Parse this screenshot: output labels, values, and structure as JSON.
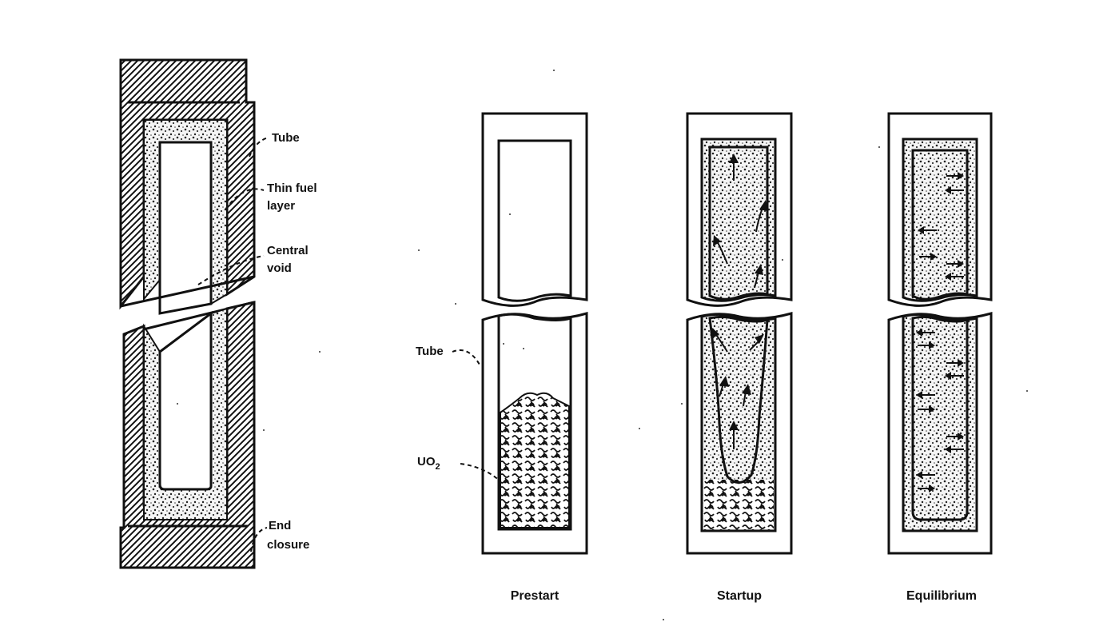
{
  "labels": {
    "tube": "Tube",
    "thin_fuel_line1": "Thin fuel",
    "thin_fuel_line2": "layer",
    "central_line1": "Central",
    "central_line2": "void",
    "end_line1": "End",
    "end_line2": "closure",
    "tube_left": "Tube",
    "uo2_main": "UO",
    "uo2_sub": "2"
  },
  "stages": [
    {
      "label": "Prestart"
    },
    {
      "label": "Startup"
    },
    {
      "label": "Equilibrium"
    }
  ],
  "colors": {
    "ink": "#111111",
    "paper": "#ffffff"
  }
}
